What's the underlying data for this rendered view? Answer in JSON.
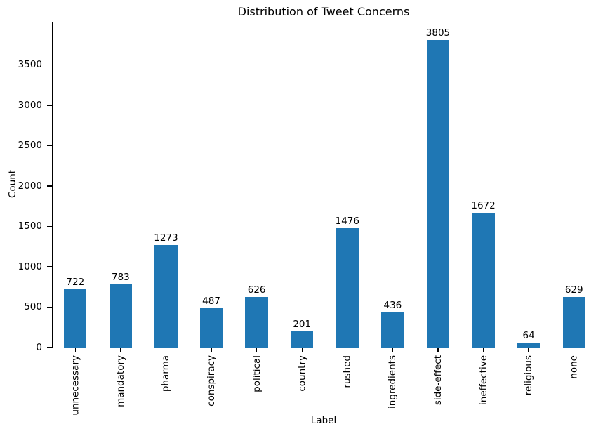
{
  "chart_data": {
    "type": "bar",
    "title": "Distribution of Tweet Concerns",
    "xlabel": "Label",
    "ylabel": "Count",
    "categories": [
      "unnecessary",
      "mandatory",
      "pharma",
      "conspiracy",
      "political",
      "country",
      "rushed",
      "ingredients",
      "side-effect",
      "ineffective",
      "religious",
      "none"
    ],
    "values": [
      722,
      783,
      1273,
      487,
      626,
      201,
      1476,
      436,
      3805,
      1672,
      64,
      629
    ],
    "bar_color": "#1f77b4",
    "text_color": "#000000",
    "background_color": "#ffffff",
    "ylim": [
      0,
      4026
    ],
    "yticks": [
      0,
      500,
      1000,
      1500,
      2000,
      2500,
      3000,
      3500
    ],
    "xtick_rotation": 90,
    "value_labels_shown": true,
    "grid": false,
    "legend": "none"
  }
}
